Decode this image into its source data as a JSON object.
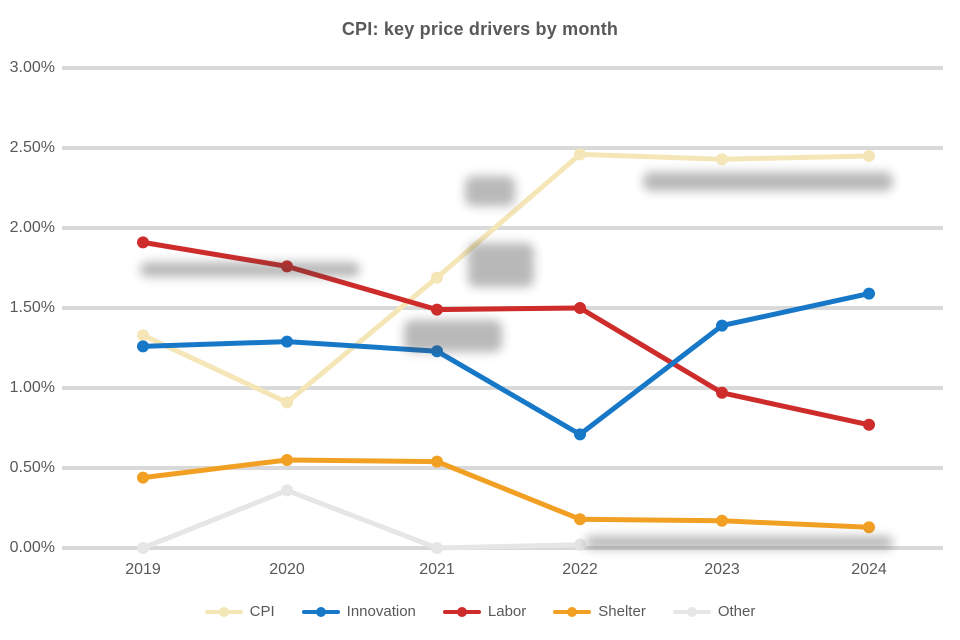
{
  "title": "CPI: key price drivers by month",
  "colors": {
    "background": "#ffffff",
    "gridline": "#D9D9D9",
    "text": "#595959",
    "series_cream": "#F5E6B8",
    "series_blue": "#1878C8",
    "series_red": "#CE2B2B",
    "series_orange": "#F2A024",
    "series_gray": "#E6E6E6"
  },
  "chart_data": {
    "type": "line",
    "title": "CPI: key price drivers by month",
    "xlabel": "",
    "ylabel": "",
    "ylim": [
      0.0,
      3.0
    ],
    "grid": true,
    "legend_position": "bottom",
    "marker": "circle",
    "x_labels": [
      "2019",
      "2020",
      "2021",
      "2022",
      "2023",
      "2024"
    ],
    "y_tick_labels": [
      "3.00%",
      "2.50%",
      "2.00%",
      "1.50%",
      "1.00%",
      "0.50%",
      "0.00%"
    ],
    "series": [
      {
        "name": "CPI",
        "color": "#F5E6B8",
        "values": [
          1.33,
          0.91,
          1.69,
          2.46,
          2.43,
          2.45
        ]
      },
      {
        "name": "Innovation",
        "color": "#1878C8",
        "values": [
          1.26,
          1.29,
          1.23,
          0.71,
          1.39,
          1.59
        ]
      },
      {
        "name": "Labor",
        "color": "#CE2B2B",
        "values": [
          1.91,
          1.76,
          1.49,
          1.5,
          0.97,
          0.77
        ]
      },
      {
        "name": "Shelter",
        "color": "#F2A024",
        "values": [
          0.44,
          0.55,
          0.54,
          0.18,
          0.17,
          0.13
        ]
      },
      {
        "name": "Other",
        "color": "#E6E6E6",
        "values": [
          0.0,
          0.36,
          0.0,
          0.02,
          null,
          null
        ]
      }
    ]
  }
}
